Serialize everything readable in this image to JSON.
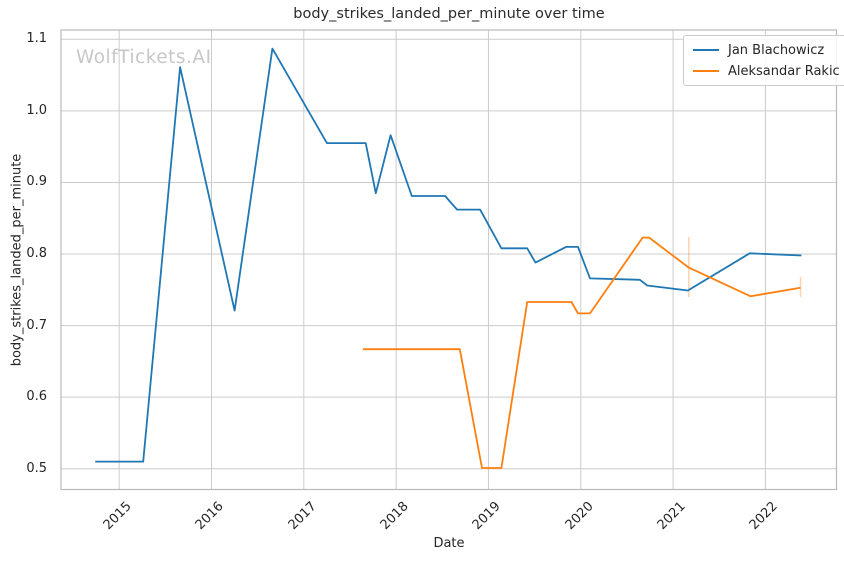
{
  "watermark": "WolfTickets.AI",
  "chart_data": {
    "type": "line",
    "title": "body_strikes_landed_per_minute over time",
    "xlabel": "Date",
    "ylabel": "body_strikes_landed_per_minute",
    "xlim": [
      2014.37,
      2022.77
    ],
    "ylim": [
      0.471,
      1.113
    ],
    "x_ticks": [
      2015,
      2016,
      2017,
      2018,
      2019,
      2020,
      2021,
      2022
    ],
    "y_ticks": [
      0.5,
      0.6,
      0.7,
      0.8,
      0.9,
      1.0,
      1.1
    ],
    "grid": true,
    "legend_position": "upper right",
    "series": [
      {
        "name": "Jan Blachowicz",
        "color": "#1f77b4",
        "points": [
          [
            2014.74,
            0.51
          ],
          [
            2015.26,
            0.51
          ],
          [
            2015.66,
            1.061
          ],
          [
            2016.25,
            0.721
          ],
          [
            2016.66,
            1.087
          ],
          [
            2017.25,
            0.955
          ],
          [
            2017.67,
            0.955
          ],
          [
            2017.78,
            0.885
          ],
          [
            2017.94,
            0.966
          ],
          [
            2018.17,
            0.881
          ],
          [
            2018.53,
            0.881
          ],
          [
            2018.66,
            0.862
          ],
          [
            2018.91,
            0.862
          ],
          [
            2019.14,
            0.808
          ],
          [
            2019.42,
            0.808
          ],
          [
            2019.51,
            0.788
          ],
          [
            2019.84,
            0.81
          ],
          [
            2019.97,
            0.81
          ],
          [
            2020.1,
            0.766
          ],
          [
            2020.64,
            0.764
          ],
          [
            2020.72,
            0.756
          ],
          [
            2021.16,
            0.749
          ],
          [
            2021.83,
            0.801
          ],
          [
            2022.39,
            0.798
          ]
        ],
        "error_bars": []
      },
      {
        "name": "Aleksandar Rakic",
        "color": "#ff7f0e",
        "points": [
          [
            2017.64,
            0.667
          ],
          [
            2018.69,
            0.667
          ],
          [
            2018.93,
            0.501
          ],
          [
            2019.14,
            0.501
          ],
          [
            2019.42,
            0.733
          ],
          [
            2019.9,
            0.733
          ],
          [
            2019.97,
            0.717
          ],
          [
            2020.1,
            0.717
          ],
          [
            2020.67,
            0.823
          ],
          [
            2020.74,
            0.823
          ],
          [
            2021.17,
            0.781
          ],
          [
            2021.84,
            0.741
          ],
          [
            2022.38,
            0.753
          ]
        ],
        "error_bars": [
          {
            "x": 2021.17,
            "y_low": 0.74,
            "y_high": 0.824
          },
          {
            "x": 2022.38,
            "y_low": 0.74,
            "y_high": 0.768
          }
        ]
      }
    ]
  },
  "colors": {
    "background": "#ffffff",
    "grid": "#cccccc",
    "spine": "#b9b9b9",
    "text": "#262626",
    "watermark": "#c7c7c7"
  }
}
